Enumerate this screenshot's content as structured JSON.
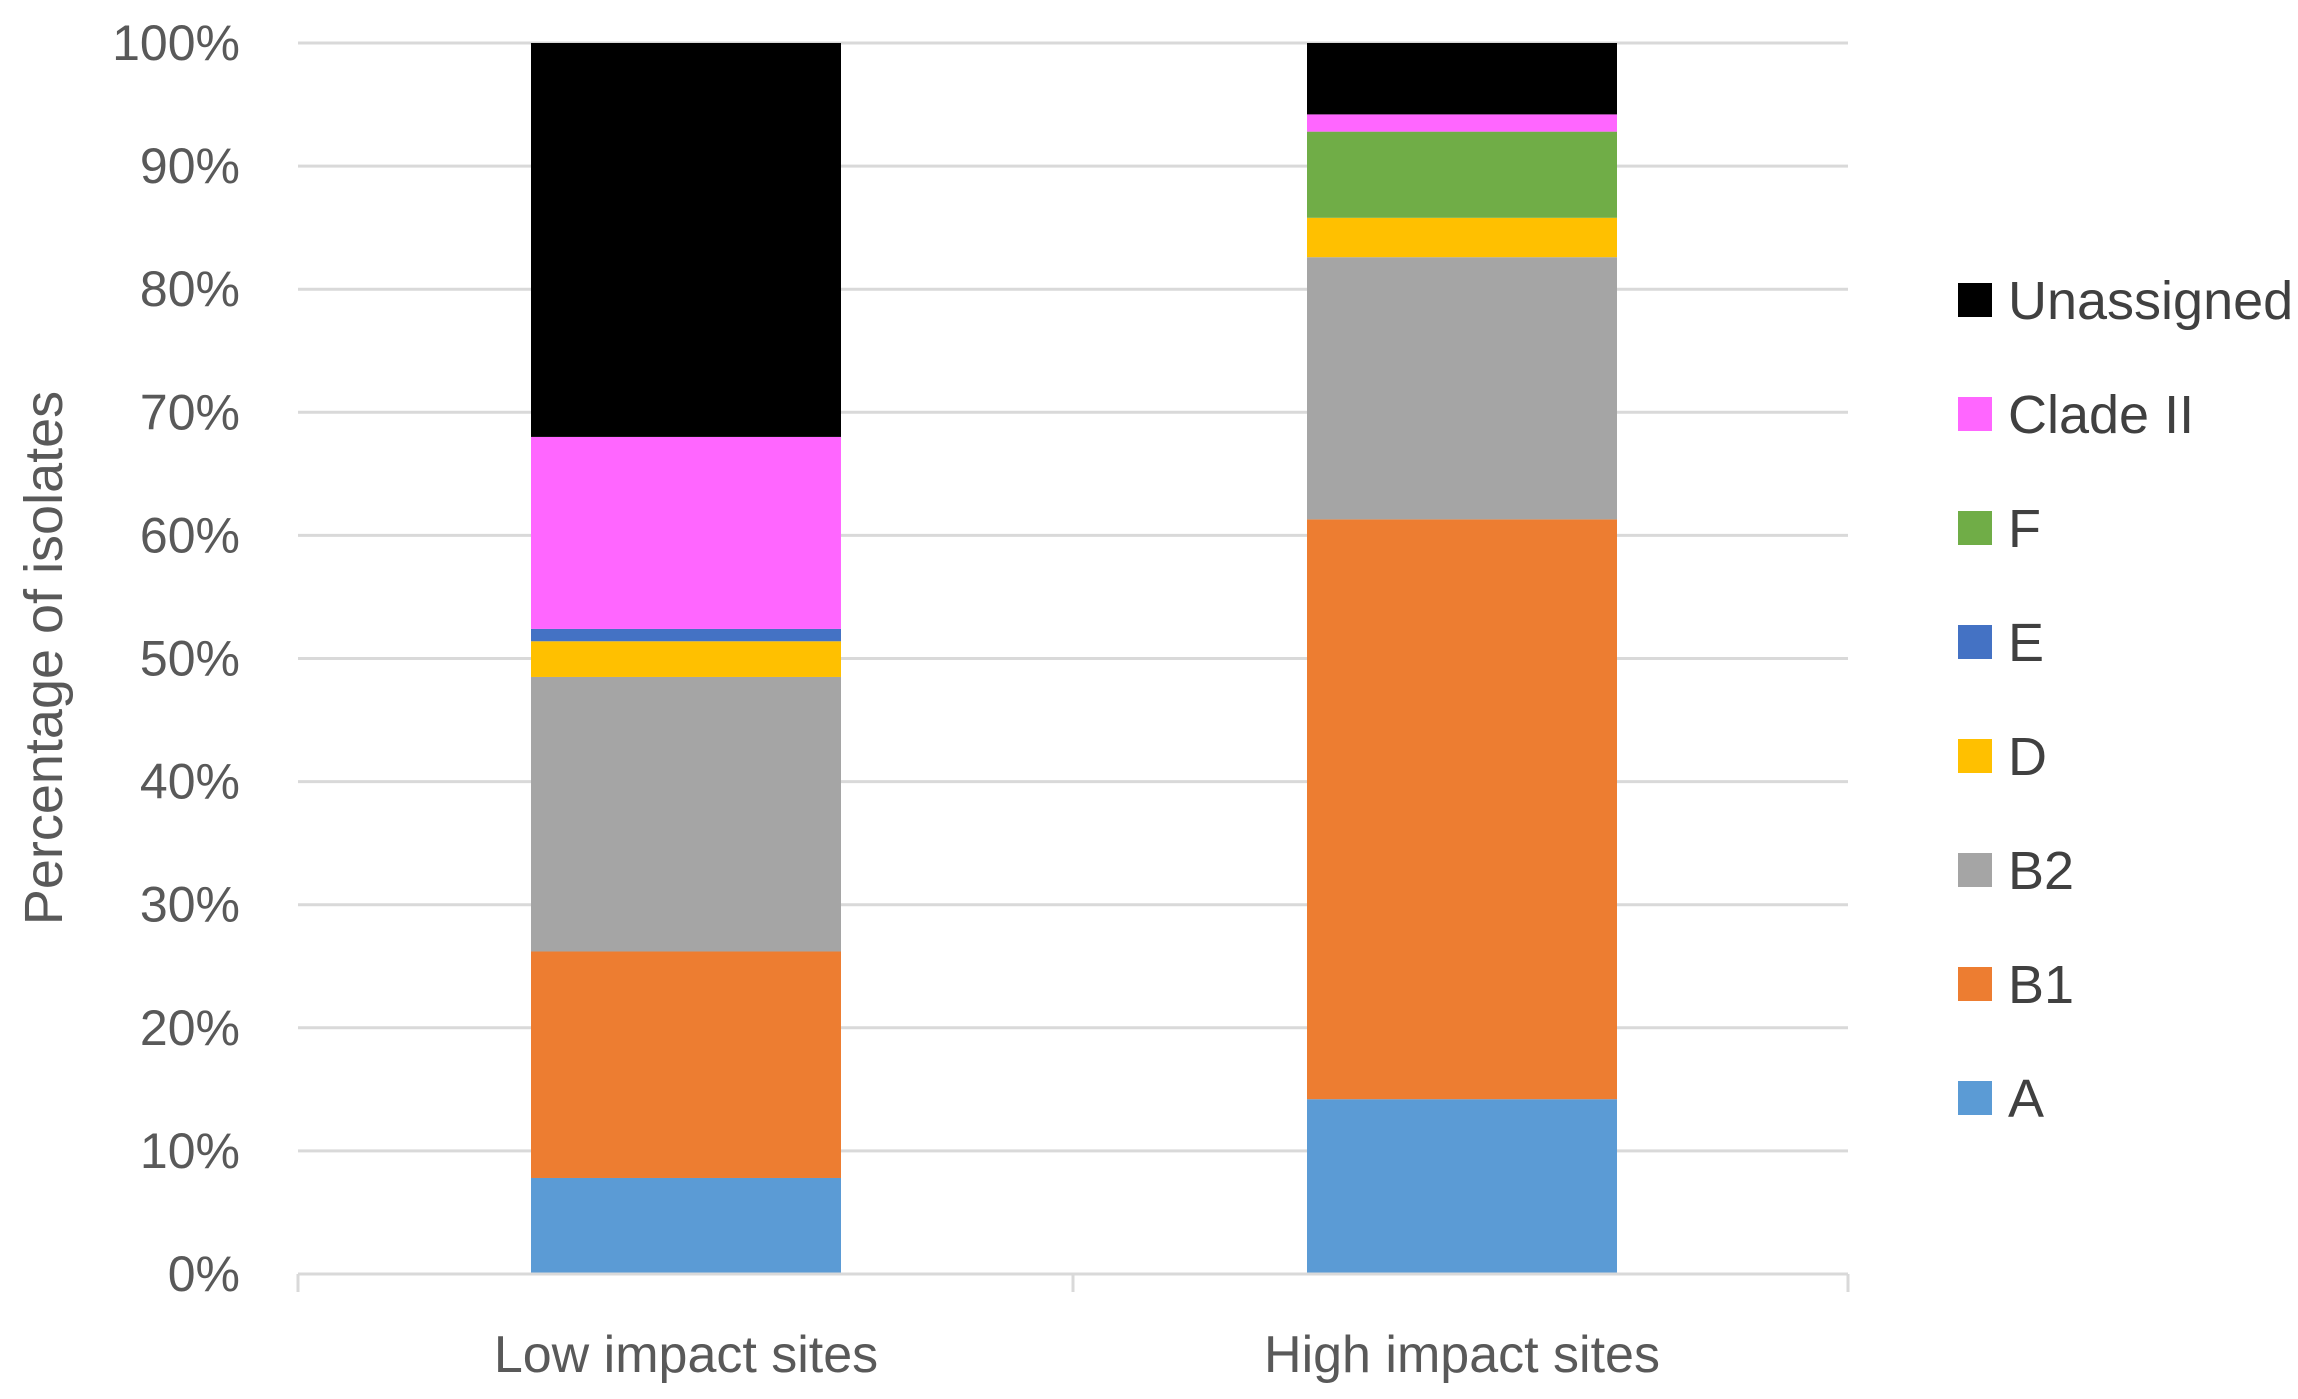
{
  "chart_data": {
    "type": "bar",
    "stacked": true,
    "percent_stacked": true,
    "title": "",
    "xlabel": "",
    "ylabel": "Percentage of isolates",
    "ylim": [
      0,
      100
    ],
    "y_ticks": [
      "0%",
      "10%",
      "20%",
      "30%",
      "40%",
      "50%",
      "60%",
      "70%",
      "80%",
      "90%",
      "100%"
    ],
    "categories": [
      "Low impact sites",
      "High impact sites"
    ],
    "grid": true,
    "legend_position": "right",
    "series": [
      {
        "name": "A",
        "color": "#5B9BD5",
        "values": [
          7.8,
          14.2
        ]
      },
      {
        "name": "B1",
        "color": "#ED7D31",
        "values": [
          18.4,
          47.1
        ]
      },
      {
        "name": "B2",
        "color": "#A5A5A5",
        "values": [
          22.3,
          21.3
        ]
      },
      {
        "name": "D",
        "color": "#FFC000",
        "values": [
          2.9,
          3.2
        ]
      },
      {
        "name": "E",
        "color": "#4472C4",
        "values": [
          1.0,
          0.0
        ]
      },
      {
        "name": "F",
        "color": "#70AD47",
        "values": [
          0.0,
          7.0
        ]
      },
      {
        "name": "Clade II",
        "color": "#FF66FF",
        "values": [
          15.6,
          1.4
        ]
      },
      {
        "name": "Unassigned",
        "color": "#000000",
        "values": [
          32.0,
          5.8
        ]
      }
    ]
  }
}
